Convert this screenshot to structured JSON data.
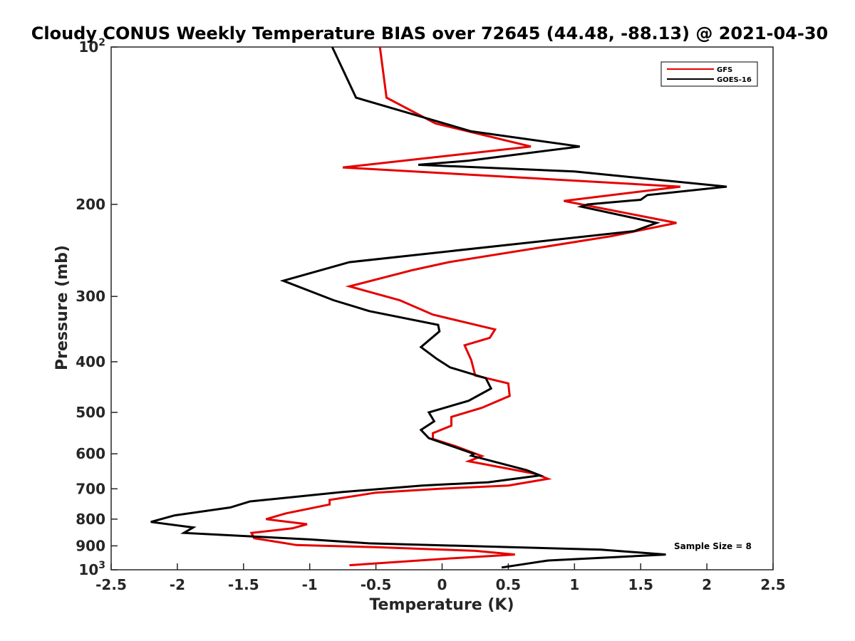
{
  "chart_data": {
    "type": "line",
    "title": "Cloudy CONUS Weekly Temperature BIAS over 72645 (44.48, -88.13) @ 2021-04-30",
    "xlabel": "Temperature (K)",
    "ylabel": "Pressure (mb)",
    "xlim": [
      -2.5,
      2.5
    ],
    "ylim": [
      100,
      1000
    ],
    "y_scale": "log",
    "y_reversed": true,
    "grid": false,
    "legend_position": "top-right",
    "x_ticks": [
      -2.5,
      -2,
      -1.5,
      -1,
      -0.5,
      0,
      0.5,
      1,
      1.5,
      2,
      2.5
    ],
    "x_tick_labels": [
      "-2.5",
      "-2",
      "-1.5",
      "-1",
      "-0.5",
      "0",
      "0.5",
      "1",
      "1.5",
      "2",
      "2.5"
    ],
    "y_ticks": [
      {
        "value": 100,
        "base": "10",
        "exp": "2"
      },
      {
        "value": 200,
        "label": "200"
      },
      {
        "value": 300,
        "label": "300"
      },
      {
        "value": 400,
        "label": "400"
      },
      {
        "value": 500,
        "label": "500"
      },
      {
        "value": 600,
        "label": "600"
      },
      {
        "value": 700,
        "label": "700"
      },
      {
        "value": 800,
        "label": "800"
      },
      {
        "value": 900,
        "label": "900"
      },
      {
        "value": 1000,
        "base": "10",
        "exp": "3"
      }
    ],
    "annotation": "Sample Size = 8",
    "series": [
      {
        "name": "GFS",
        "color": "#e60000",
        "points": [
          [
            -0.47,
            100
          ],
          [
            -0.42,
            125
          ],
          [
            -0.05,
            140
          ],
          [
            0.67,
            155
          ],
          [
            -0.75,
            170
          ],
          [
            1.8,
            185
          ],
          [
            0.92,
            197
          ],
          [
            1.77,
            217
          ],
          [
            1.28,
            230
          ],
          [
            0.05,
            258
          ],
          [
            -0.22,
            267
          ],
          [
            -0.7,
            287
          ],
          [
            -0.32,
            305
          ],
          [
            -0.07,
            325
          ],
          [
            0.4,
            347
          ],
          [
            0.36,
            360
          ],
          [
            0.17,
            372
          ],
          [
            0.2,
            387
          ],
          [
            0.22,
            397
          ],
          [
            0.25,
            425
          ],
          [
            0.5,
            440
          ],
          [
            0.51,
            465
          ],
          [
            0.3,
            490
          ],
          [
            0.07,
            510
          ],
          [
            0.07,
            530
          ],
          [
            -0.07,
            548
          ],
          [
            -0.07,
            562
          ],
          [
            0.1,
            580
          ],
          [
            0.3,
            606
          ],
          [
            0.2,
            620
          ],
          [
            0.7,
            655
          ],
          [
            0.8,
            670
          ],
          [
            0.5,
            690
          ],
          [
            -0.02,
            700
          ],
          [
            -0.5,
            712
          ],
          [
            -0.85,
            735
          ],
          [
            -0.85,
            750
          ],
          [
            -1.18,
            780
          ],
          [
            -1.33,
            800
          ],
          [
            -1.02,
            818
          ],
          [
            -1.13,
            833
          ],
          [
            -1.44,
            850
          ],
          [
            -1.42,
            870
          ],
          [
            -1.1,
            897
          ],
          [
            -0.5,
            905
          ],
          [
            0.25,
            920
          ],
          [
            0.55,
            935
          ],
          [
            0.1,
            950
          ],
          [
            -0.7,
            980
          ]
        ]
      },
      {
        "name": "GOES-16",
        "color": "#000000",
        "points": [
          [
            -0.83,
            100
          ],
          [
            -0.65,
            125
          ],
          [
            0.22,
            145
          ],
          [
            1.04,
            155
          ],
          [
            0.2,
            165
          ],
          [
            -0.18,
            168
          ],
          [
            1.0,
            173
          ],
          [
            2.15,
            185
          ],
          [
            1.55,
            192
          ],
          [
            1.5,
            196
          ],
          [
            1.1,
            200
          ],
          [
            1.05,
            202
          ],
          [
            1.62,
            217
          ],
          [
            1.45,
            225
          ],
          [
            -0.7,
            258
          ],
          [
            -1.2,
            280
          ],
          [
            -0.82,
            305
          ],
          [
            -0.55,
            320
          ],
          [
            -0.03,
            340
          ],
          [
            -0.02,
            350
          ],
          [
            -0.16,
            375
          ],
          [
            -0.04,
            395
          ],
          [
            0.06,
            410
          ],
          [
            0.33,
            430
          ],
          [
            0.37,
            450
          ],
          [
            0.2,
            475
          ],
          [
            -0.1,
            500
          ],
          [
            -0.06,
            520
          ],
          [
            -0.16,
            540
          ],
          [
            -0.1,
            560
          ],
          [
            0.24,
            600
          ],
          [
            0.22,
            605
          ],
          [
            0.64,
            645
          ],
          [
            0.74,
            660
          ],
          [
            0.35,
            680
          ],
          [
            -0.15,
            690
          ],
          [
            -0.75,
            710
          ],
          [
            -1.45,
            740
          ],
          [
            -1.6,
            760
          ],
          [
            -2.02,
            787
          ],
          [
            -2.2,
            810
          ],
          [
            -1.88,
            830
          ],
          [
            -1.95,
            850
          ],
          [
            -1.0,
            875
          ],
          [
            -0.55,
            890
          ],
          [
            1.2,
            915
          ],
          [
            1.69,
            935
          ],
          [
            0.8,
            960
          ],
          [
            0.45,
            990
          ]
        ]
      }
    ]
  }
}
